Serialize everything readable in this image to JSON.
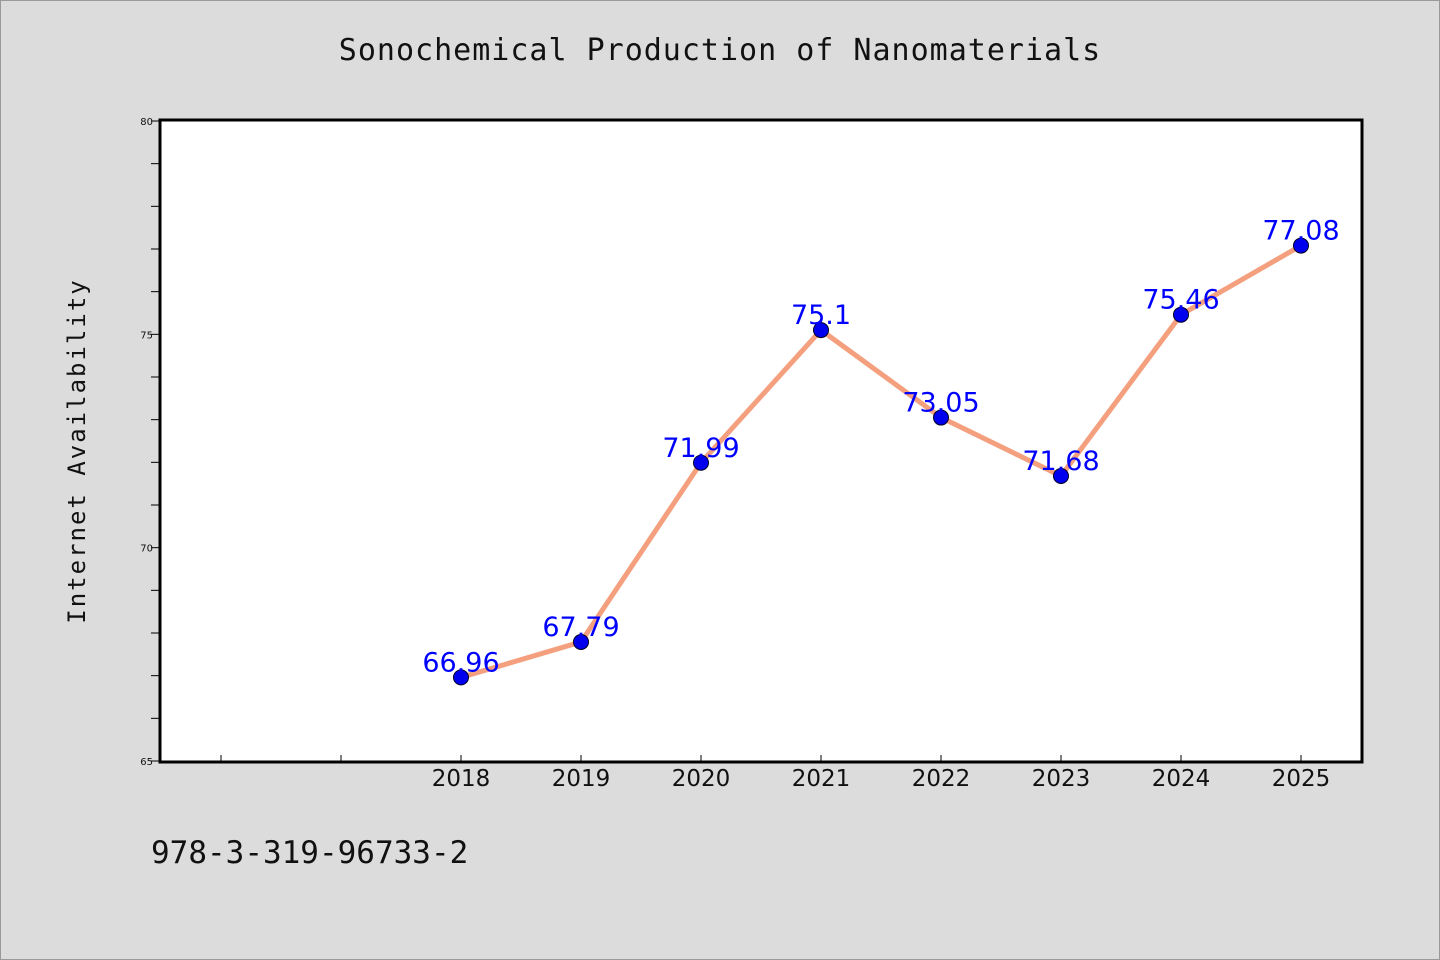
{
  "chart_data": {
    "type": "line",
    "title": "Sonochemical Production of Nanomaterials",
    "xlabel": "",
    "ylabel": "Internet Availability",
    "categories": [
      "2018",
      "2019",
      "2020",
      "2021",
      "2022",
      "2023",
      "2024",
      "2025"
    ],
    "series": [
      {
        "values": [
          66.96,
          67.79,
          71.99,
          75.1,
          73.05,
          71.68,
          75.46,
          77.08
        ],
        "line_color": "#f4a07e",
        "marker_color": "#0000ee",
        "label_color": "#0000ff"
      }
    ],
    "data_labels": [
      "66.96",
      "67.79",
      "71.99",
      "75.1",
      "73.05",
      "71.68",
      "75.46",
      "77.08"
    ],
    "ylim": [
      65,
      80
    ],
    "y_ticks": [
      65,
      70,
      75,
      80
    ],
    "y_tick_labels": [
      "65",
      "70",
      "75",
      "80"
    ],
    "grid": false,
    "legend": "none"
  },
  "footer_text": "978-3-319-96733-2",
  "colors": {
    "background": "#dcdcdc",
    "plot_background": "#ffffff",
    "axis": "#000000"
  }
}
